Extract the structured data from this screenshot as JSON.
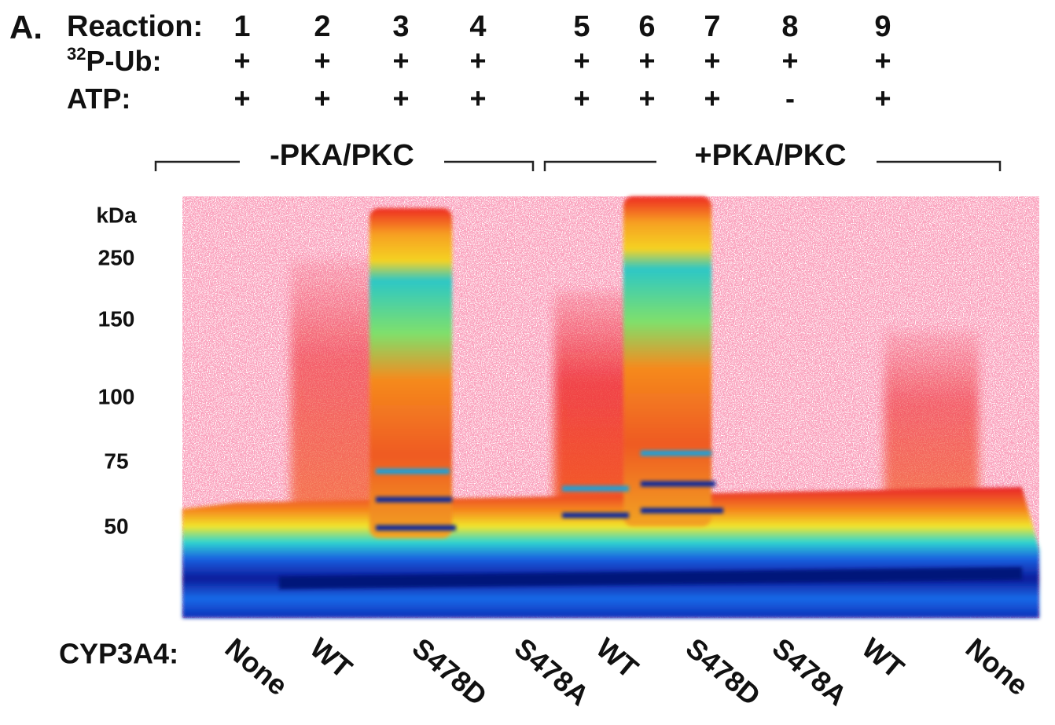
{
  "panel_label": "A.",
  "rows": [
    {
      "label": "Reaction:",
      "values": [
        "1",
        "2",
        "3",
        "4",
        "5",
        "6",
        "7",
        "8",
        "9"
      ]
    },
    {
      "label_superscript": "32",
      "label": "P-Ub:",
      "values": [
        "+",
        "+",
        "+",
        "+",
        "+",
        "+",
        "+",
        "+",
        "+"
      ]
    },
    {
      "label": "ATP:",
      "values": [
        "+",
        "+",
        "+",
        "+",
        "+",
        "+",
        "+",
        "-",
        "+"
      ]
    }
  ],
  "groups": [
    "-PKA/PKC",
    "+PKA/PKC"
  ],
  "mw_axis": {
    "unit": "kDa",
    "markers": [
      250,
      150,
      100,
      75,
      50
    ]
  },
  "lane_axis_label": "CYP3A4:",
  "lanes": [
    "None",
    "WT",
    "S478D",
    "S478A",
    "WT",
    "S478D",
    "S478A",
    "WT",
    "None"
  ]
}
